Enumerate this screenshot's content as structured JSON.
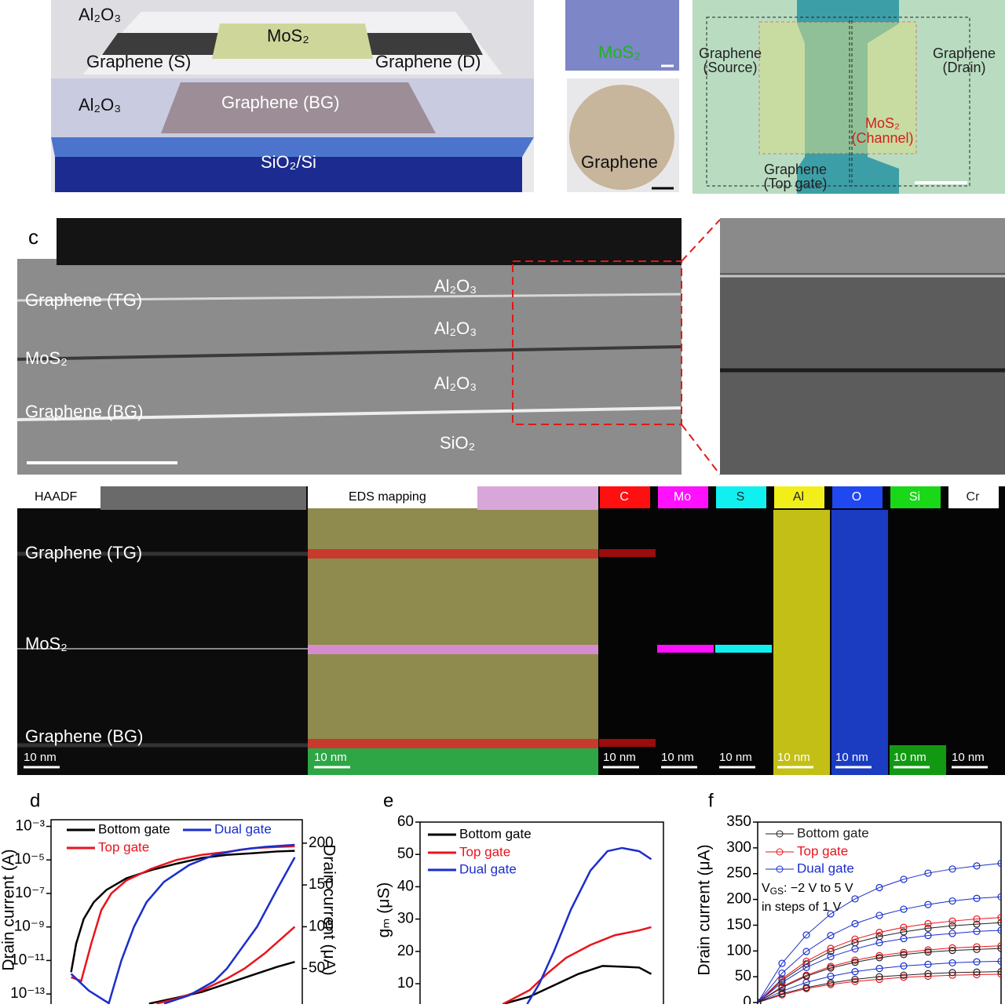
{
  "panel_a": {
    "labels": [
      "Al₂O₃",
      "MoS₂",
      "Graphene (S)",
      "Graphene (D)",
      "Al₂O₃",
      "Graphene (BG)",
      "SiO₂/Si"
    ]
  },
  "panel_b": {
    "flake": "MoS₂",
    "wafer": "Graphene",
    "device": [
      "Graphene",
      "(Source)",
      "Graphene",
      "(Drain)",
      "MoS₂",
      "(Channel)",
      "Graphene",
      "(Top gate)"
    ]
  },
  "panel_c": {
    "letter": "c",
    "layers": [
      "Al₂O₃",
      "Al₂O₃",
      "Al₂O₃",
      "SiO₂"
    ],
    "side": [
      "Graphene (TG)",
      "MoS₂",
      "Graphene (BG)"
    ]
  },
  "eds": {
    "haadf": "HAADF",
    "mapping": "EDS mapping",
    "scale": "10 nm",
    "side": [
      "Graphene (TG)",
      "MoS₂",
      "Graphene (BG)"
    ],
    "elements": [
      {
        "symbol": "C",
        "color": "#ff1010"
      },
      {
        "symbol": "Mo",
        "color": "#ff10ff"
      },
      {
        "symbol": "S",
        "color": "#10f0f0"
      },
      {
        "symbol": "Al",
        "color": "#f2ee1a"
      },
      {
        "symbol": "O",
        "color": "#2048f0"
      },
      {
        "symbol": "Si",
        "color": "#18d818"
      },
      {
        "symbol": "Cr",
        "color": "#ffffff"
      }
    ]
  },
  "chart_data": [
    {
      "type": "line",
      "letter": "d",
      "ylabel": "Drain current (A)",
      "y2label": "Drain current (μA)",
      "ylog": true,
      "xlim": [
        0,
        10
      ],
      "ylim": [
        2.5e-14,
        0.0025
      ],
      "yticks": [
        {
          "value": 0.001,
          "label": "10⁻³"
        },
        {
          "value": 1e-05,
          "label": "10⁻⁵"
        },
        {
          "value": 1e-07,
          "label": "10⁻⁷"
        },
        {
          "value": 1e-09,
          "label": "10⁻⁹"
        },
        {
          "value": 1e-11,
          "label": "10⁻¹¹"
        },
        {
          "value": 1e-13,
          "label": "10⁻¹³"
        }
      ],
      "y2lim": [
        7.5,
        228
      ],
      "y2ticks": [
        50,
        100,
        150,
        200
      ],
      "legend": "upper left",
      "series": [
        {
          "name": "Bottom gate",
          "color": "#000000",
          "x": [
            0.8,
            1.0,
            1.3,
            1.7,
            2.2,
            3,
            4,
            5,
            6,
            7,
            8,
            9,
            9.7
          ],
          "values": [
            2e-12,
            1e-10,
            3e-09,
            3e-08,
            1.6e-07,
            8e-07,
            2.5e-06,
            6e-06,
            1.3e-05,
            2e-05,
            2.5e-05,
            3.2e-05,
            3.5e-05
          ]
        },
        {
          "name": "Top gate",
          "color": "#e8141c",
          "x": [
            0.8,
            1.2,
            1.6,
            2.0,
            2.4,
            3,
            4,
            5,
            6,
            7,
            8,
            9,
            9.7
          ],
          "values": [
            1e-12,
            6e-13,
            1e-10,
            1e-08,
            1e-07,
            6e-07,
            3e-06,
            1e-05,
            2e-05,
            3e-05,
            5e-05,
            6e-05,
            6.5e-05
          ]
        },
        {
          "name": "Dual gate",
          "color": "#1a2ecc",
          "x": [
            0.8,
            1.5,
            2.3,
            2.8,
            3.3,
            3.8,
            4.5,
            5.5,
            6.5,
            7.5,
            8.5,
            9.7
          ],
          "values": [
            1.6e-12,
            1.6e-13,
            2.8e-14,
            1e-11,
            1e-09,
            3e-08,
            5e-07,
            5e-06,
            2e-05,
            4e-05,
            6e-05,
            8e-05
          ]
        },
        {
          "color": "#000000",
          "axis": "y2",
          "x": [
            3.9,
            5,
            6,
            7,
            8,
            9,
            9.7
          ],
          "values": [
            8,
            15,
            22,
            32,
            42,
            52,
            58
          ]
        },
        {
          "color": "#e8141c",
          "axis": "y2",
          "x": [
            4.2,
            5,
            6,
            7,
            7.7,
            8.5,
            9.7
          ],
          "values": [
            8,
            14,
            24,
            38,
            50,
            68,
            100
          ]
        },
        {
          "color": "#1a2ecc",
          "axis": "y2",
          "x": [
            4.5,
            5.5,
            6.5,
            7,
            7.6,
            8.2,
            9,
            9.7
          ],
          "values": [
            8,
            18,
            35,
            50,
            75,
            100,
            145,
            183
          ]
        }
      ]
    },
    {
      "type": "line",
      "letter": "e",
      "ylabel": "gₘ (μS)",
      "xlim": [
        0,
        10
      ],
      "ylim": [
        3.7,
        60
      ],
      "yticks": [
        10,
        20,
        30,
        40,
        50,
        60
      ],
      "legend": "upper left",
      "series": [
        {
          "name": "Bottom gate",
          "color": "#000000",
          "x": [
            3.4,
            4.5,
            5.5,
            6.5,
            7.5,
            8.5,
            9,
            9.5
          ],
          "values": [
            3.7,
            6,
            9.5,
            13,
            15.5,
            15.2,
            15,
            13
          ]
        },
        {
          "name": "Top gate",
          "color": "#e8141c",
          "x": [
            3.4,
            4.5,
            5.2,
            6,
            7,
            8,
            9,
            9.5
          ],
          "values": [
            3.7,
            8,
            13,
            18,
            22,
            25,
            26.5,
            27.5
          ]
        },
        {
          "name": "Dual gate",
          "color": "#1a2ecc",
          "x": [
            4.4,
            4.9,
            5.5,
            6.2,
            7,
            7.7,
            8.3,
            9,
            9.5
          ],
          "values": [
            3.7,
            10,
            20,
            33,
            45,
            51,
            52,
            51,
            48.5
          ]
        }
      ]
    },
    {
      "type": "line",
      "letter": "f",
      "ylabel": "Drain current (μA)",
      "markers": "circle",
      "xlim": [
        0,
        10
      ],
      "ylim": [
        -3,
        350
      ],
      "yticks": [
        0,
        50,
        100,
        150,
        200,
        250,
        300,
        350
      ],
      "legend": "upper left",
      "annotation": [
        "V",
        "GS",
        ": −2 V to 5 V",
        "in steps of 1 V"
      ],
      "x": [
        0,
        1,
        2,
        3,
        4,
        5,
        6,
        7,
        8,
        9,
        10
      ],
      "series": [
        {
          "name": "Bottom gate",
          "color": "#222222",
          "values": [
            0,
            43,
            75,
            99,
            116,
            128,
            137,
            144,
            149,
            152,
            155
          ]
        },
        {
          "name": "Top gate",
          "color": "#e8141c",
          "values": [
            0,
            46,
            80,
            105,
            123,
            136,
            146,
            153,
            158,
            162,
            165
          ]
        },
        {
          "name": "Dual gate",
          "color": "#1a2ecc",
          "values": [
            0,
            76,
            131,
            172,
            201,
            223,
            239,
            251,
            259,
            265,
            270
          ]
        },
        {
          "color": "#1a2ecc",
          "values": [
            0,
            57,
            99,
            130,
            153,
            169,
            181,
            190,
            197,
            202,
            205
          ]
        },
        {
          "color": "#1a2ecc",
          "values": [
            0,
            39,
            68,
            89,
            104,
            116,
            124,
            130,
            134,
            138,
            140
          ]
        },
        {
          "color": "#1a2ecc",
          "values": [
            0,
            22,
            39,
            51,
            60,
            66,
            71,
            74,
            77,
            79,
            80
          ]
        },
        {
          "color": "#e8141c",
          "values": [
            0,
            31,
            53,
            70,
            82,
            91,
            97,
            102,
            106,
            108,
            110
          ]
        },
        {
          "color": "#e8141c",
          "values": [
            0,
            15,
            27,
            35,
            41,
            45,
            49,
            51,
            53,
            54,
            55
          ]
        },
        {
          "color": "#222222",
          "values": [
            0,
            29,
            51,
            67,
            78,
            87,
            93,
            98,
            101,
            103,
            105
          ]
        },
        {
          "color": "#222222",
          "values": [
            0,
            17,
            29,
            38,
            45,
            50,
            53,
            56,
            58,
            59,
            60
          ]
        }
      ]
    }
  ]
}
